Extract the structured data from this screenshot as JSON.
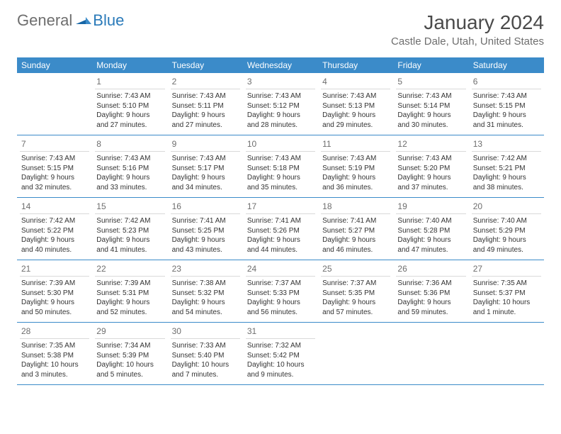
{
  "logo": {
    "general": "General",
    "blue": "Blue"
  },
  "title": "January 2024",
  "location": "Castle Dale, Utah, United States",
  "dayNames": [
    "Sunday",
    "Monday",
    "Tuesday",
    "Wednesday",
    "Thursday",
    "Friday",
    "Saturday"
  ],
  "colors": {
    "headerBg": "#3b8bc9",
    "headerText": "#ffffff",
    "border": "#3b8bc9",
    "dayNumSep": "#d9d9d9",
    "logoGray": "#6e6e6e",
    "logoBlue": "#2a7ab9",
    "bodyText": "#333333"
  },
  "weeks": [
    [
      {
        "day": "",
        "sunrise": "",
        "sunset": "",
        "daylight1": "",
        "daylight2": ""
      },
      {
        "day": "1",
        "sunrise": "Sunrise: 7:43 AM",
        "sunset": "Sunset: 5:10 PM",
        "daylight1": "Daylight: 9 hours",
        "daylight2": "and 27 minutes."
      },
      {
        "day": "2",
        "sunrise": "Sunrise: 7:43 AM",
        "sunset": "Sunset: 5:11 PM",
        "daylight1": "Daylight: 9 hours",
        "daylight2": "and 27 minutes."
      },
      {
        "day": "3",
        "sunrise": "Sunrise: 7:43 AM",
        "sunset": "Sunset: 5:12 PM",
        "daylight1": "Daylight: 9 hours",
        "daylight2": "and 28 minutes."
      },
      {
        "day": "4",
        "sunrise": "Sunrise: 7:43 AM",
        "sunset": "Sunset: 5:13 PM",
        "daylight1": "Daylight: 9 hours",
        "daylight2": "and 29 minutes."
      },
      {
        "day": "5",
        "sunrise": "Sunrise: 7:43 AM",
        "sunset": "Sunset: 5:14 PM",
        "daylight1": "Daylight: 9 hours",
        "daylight2": "and 30 minutes."
      },
      {
        "day": "6",
        "sunrise": "Sunrise: 7:43 AM",
        "sunset": "Sunset: 5:15 PM",
        "daylight1": "Daylight: 9 hours",
        "daylight2": "and 31 minutes."
      }
    ],
    [
      {
        "day": "7",
        "sunrise": "Sunrise: 7:43 AM",
        "sunset": "Sunset: 5:15 PM",
        "daylight1": "Daylight: 9 hours",
        "daylight2": "and 32 minutes."
      },
      {
        "day": "8",
        "sunrise": "Sunrise: 7:43 AM",
        "sunset": "Sunset: 5:16 PM",
        "daylight1": "Daylight: 9 hours",
        "daylight2": "and 33 minutes."
      },
      {
        "day": "9",
        "sunrise": "Sunrise: 7:43 AM",
        "sunset": "Sunset: 5:17 PM",
        "daylight1": "Daylight: 9 hours",
        "daylight2": "and 34 minutes."
      },
      {
        "day": "10",
        "sunrise": "Sunrise: 7:43 AM",
        "sunset": "Sunset: 5:18 PM",
        "daylight1": "Daylight: 9 hours",
        "daylight2": "and 35 minutes."
      },
      {
        "day": "11",
        "sunrise": "Sunrise: 7:43 AM",
        "sunset": "Sunset: 5:19 PM",
        "daylight1": "Daylight: 9 hours",
        "daylight2": "and 36 minutes."
      },
      {
        "day": "12",
        "sunrise": "Sunrise: 7:43 AM",
        "sunset": "Sunset: 5:20 PM",
        "daylight1": "Daylight: 9 hours",
        "daylight2": "and 37 minutes."
      },
      {
        "day": "13",
        "sunrise": "Sunrise: 7:42 AM",
        "sunset": "Sunset: 5:21 PM",
        "daylight1": "Daylight: 9 hours",
        "daylight2": "and 38 minutes."
      }
    ],
    [
      {
        "day": "14",
        "sunrise": "Sunrise: 7:42 AM",
        "sunset": "Sunset: 5:22 PM",
        "daylight1": "Daylight: 9 hours",
        "daylight2": "and 40 minutes."
      },
      {
        "day": "15",
        "sunrise": "Sunrise: 7:42 AM",
        "sunset": "Sunset: 5:23 PM",
        "daylight1": "Daylight: 9 hours",
        "daylight2": "and 41 minutes."
      },
      {
        "day": "16",
        "sunrise": "Sunrise: 7:41 AM",
        "sunset": "Sunset: 5:25 PM",
        "daylight1": "Daylight: 9 hours",
        "daylight2": "and 43 minutes."
      },
      {
        "day": "17",
        "sunrise": "Sunrise: 7:41 AM",
        "sunset": "Sunset: 5:26 PM",
        "daylight1": "Daylight: 9 hours",
        "daylight2": "and 44 minutes."
      },
      {
        "day": "18",
        "sunrise": "Sunrise: 7:41 AM",
        "sunset": "Sunset: 5:27 PM",
        "daylight1": "Daylight: 9 hours",
        "daylight2": "and 46 minutes."
      },
      {
        "day": "19",
        "sunrise": "Sunrise: 7:40 AM",
        "sunset": "Sunset: 5:28 PM",
        "daylight1": "Daylight: 9 hours",
        "daylight2": "and 47 minutes."
      },
      {
        "day": "20",
        "sunrise": "Sunrise: 7:40 AM",
        "sunset": "Sunset: 5:29 PM",
        "daylight1": "Daylight: 9 hours",
        "daylight2": "and 49 minutes."
      }
    ],
    [
      {
        "day": "21",
        "sunrise": "Sunrise: 7:39 AM",
        "sunset": "Sunset: 5:30 PM",
        "daylight1": "Daylight: 9 hours",
        "daylight2": "and 50 minutes."
      },
      {
        "day": "22",
        "sunrise": "Sunrise: 7:39 AM",
        "sunset": "Sunset: 5:31 PM",
        "daylight1": "Daylight: 9 hours",
        "daylight2": "and 52 minutes."
      },
      {
        "day": "23",
        "sunrise": "Sunrise: 7:38 AM",
        "sunset": "Sunset: 5:32 PM",
        "daylight1": "Daylight: 9 hours",
        "daylight2": "and 54 minutes."
      },
      {
        "day": "24",
        "sunrise": "Sunrise: 7:37 AM",
        "sunset": "Sunset: 5:33 PM",
        "daylight1": "Daylight: 9 hours",
        "daylight2": "and 56 minutes."
      },
      {
        "day": "25",
        "sunrise": "Sunrise: 7:37 AM",
        "sunset": "Sunset: 5:35 PM",
        "daylight1": "Daylight: 9 hours",
        "daylight2": "and 57 minutes."
      },
      {
        "day": "26",
        "sunrise": "Sunrise: 7:36 AM",
        "sunset": "Sunset: 5:36 PM",
        "daylight1": "Daylight: 9 hours",
        "daylight2": "and 59 minutes."
      },
      {
        "day": "27",
        "sunrise": "Sunrise: 7:35 AM",
        "sunset": "Sunset: 5:37 PM",
        "daylight1": "Daylight: 10 hours",
        "daylight2": "and 1 minute."
      }
    ],
    [
      {
        "day": "28",
        "sunrise": "Sunrise: 7:35 AM",
        "sunset": "Sunset: 5:38 PM",
        "daylight1": "Daylight: 10 hours",
        "daylight2": "and 3 minutes."
      },
      {
        "day": "29",
        "sunrise": "Sunrise: 7:34 AM",
        "sunset": "Sunset: 5:39 PM",
        "daylight1": "Daylight: 10 hours",
        "daylight2": "and 5 minutes."
      },
      {
        "day": "30",
        "sunrise": "Sunrise: 7:33 AM",
        "sunset": "Sunset: 5:40 PM",
        "daylight1": "Daylight: 10 hours",
        "daylight2": "and 7 minutes."
      },
      {
        "day": "31",
        "sunrise": "Sunrise: 7:32 AM",
        "sunset": "Sunset: 5:42 PM",
        "daylight1": "Daylight: 10 hours",
        "daylight2": "and 9 minutes."
      },
      {
        "day": "",
        "sunrise": "",
        "sunset": "",
        "daylight1": "",
        "daylight2": ""
      },
      {
        "day": "",
        "sunrise": "",
        "sunset": "",
        "daylight1": "",
        "daylight2": ""
      },
      {
        "day": "",
        "sunrise": "",
        "sunset": "",
        "daylight1": "",
        "daylight2": ""
      }
    ]
  ]
}
